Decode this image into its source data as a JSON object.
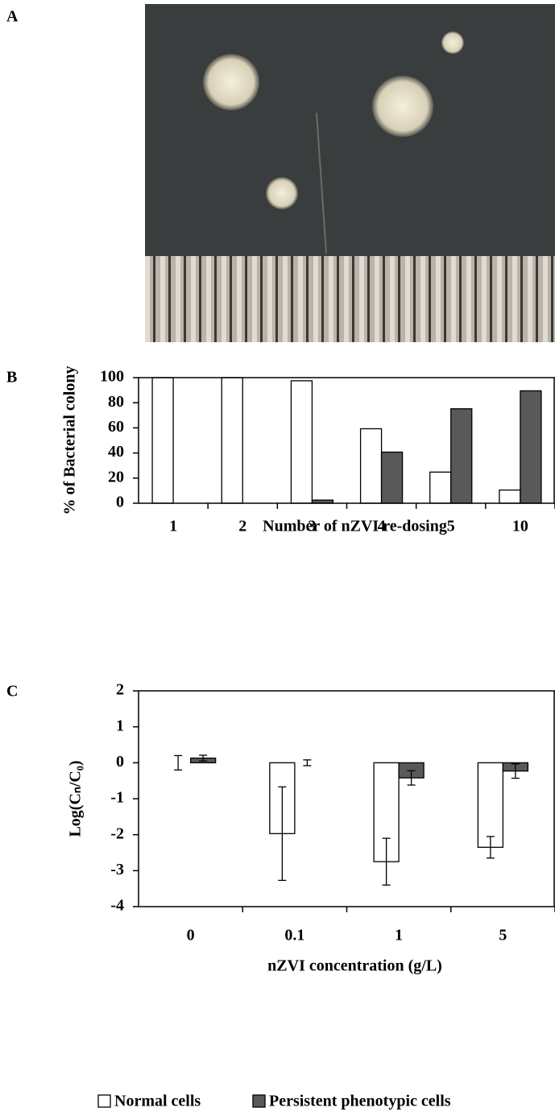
{
  "panels": [
    "A",
    "B",
    "C"
  ],
  "chart_data": [
    {
      "type": "bar",
      "y_label": "% of Bacterial colony",
      "x_label": "Number of nZVI re-dosing",
      "categories": [
        "1",
        "2",
        "3",
        "4",
        "5",
        "10"
      ],
      "series": [
        {
          "color": "#ffffff",
          "values": [
            100,
            100,
            97.5,
            59.3,
            24.8,
            10.5
          ]
        },
        {
          "color": "#595959",
          "values": [
            0,
            0,
            2.5,
            40.7,
            75.2,
            89.5
          ]
        }
      ],
      "ylim": [
        0,
        100
      ],
      "yticks": [
        0,
        20,
        40,
        60,
        80,
        100
      ]
    },
    {
      "type": "bar",
      "y_label": "Log(Cₙ/C₀)",
      "x_label": "nZVI concentration (g/L)",
      "categories": [
        "0",
        "0.1",
        "1",
        "5"
      ],
      "series": [
        {
          "name": "Normal cells",
          "color": "#ffffff",
          "values": [
            0,
            -1.97,
            -2.75,
            -2.35
          ],
          "errors": [
            0.2,
            1.3,
            0.65,
            0.3
          ]
        },
        {
          "name": "Persistent phenotypic cells",
          "color": "#595959",
          "values": [
            0.13,
            0.0,
            -0.42,
            -0.23
          ],
          "errors": [
            0.08,
            0.08,
            0.2,
            0.2
          ]
        }
      ],
      "ylim": [
        -4,
        2
      ],
      "yticks": [
        -4,
        -3,
        -2,
        -1,
        0,
        1,
        2
      ],
      "legend": "bottom"
    }
  ]
}
